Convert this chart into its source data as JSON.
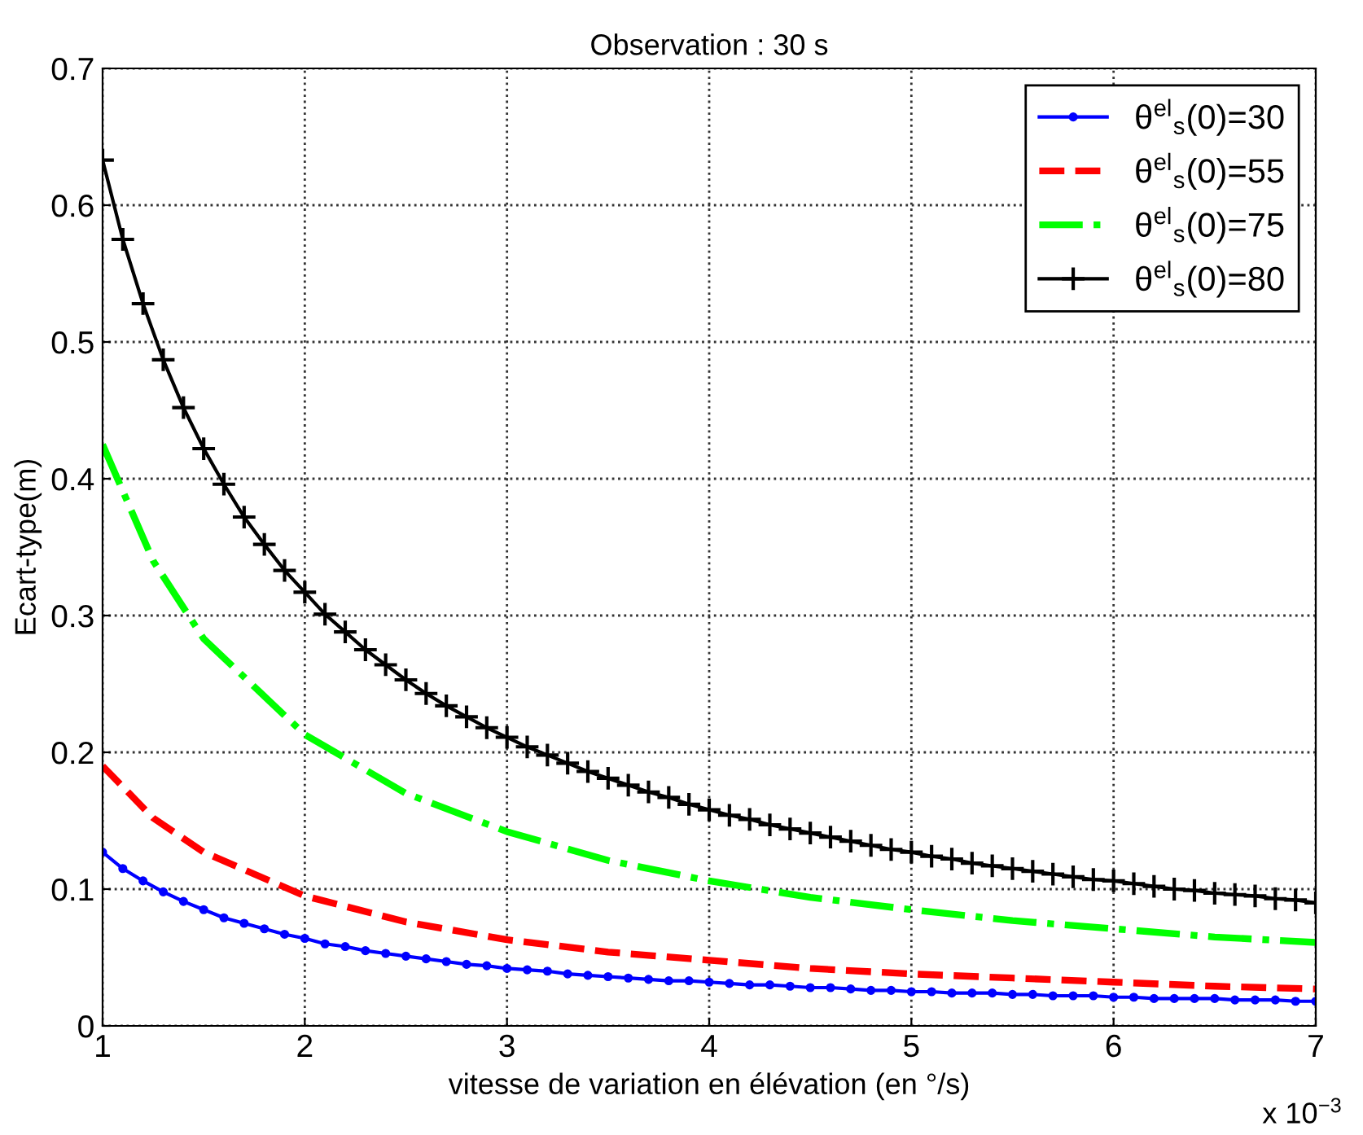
{
  "chart_data": {
    "type": "line",
    "title": "Observation : 30 s",
    "xlabel": "vitesse de variation en élévation (en °/s)",
    "ylabel": "Ecart-type(m)",
    "annotations": [
      "x 10$^{−3}$"
    ],
    "x": [
      1.0,
      1.1,
      1.2,
      1.3,
      1.4,
      1.5,
      1.6,
      1.7,
      1.8,
      1.9,
      2.0,
      2.1,
      2.2,
      2.3,
      2.4,
      2.5,
      2.6,
      2.7,
      2.8,
      2.9,
      3.0,
      3.1,
      3.2,
      3.3,
      3.4,
      3.5,
      3.6,
      3.7,
      3.8,
      3.9,
      4.0,
      4.1,
      4.2,
      4.3,
      4.4,
      4.5,
      4.6,
      4.7,
      4.8,
      4.9,
      5.0,
      5.1,
      5.2,
      5.3,
      5.4,
      5.5,
      5.6,
      5.7,
      5.8,
      5.9,
      6.0,
      6.1,
      6.2,
      6.3,
      6.4,
      6.5,
      6.6,
      6.7,
      6.8,
      6.9,
      7.0
    ],
    "series": [
      {
        "name": "θ$^{el}$$_{s}$(0)=30",
        "color": "#0000ff",
        "line_style": "solid",
        "marker": "circle",
        "values": [
          0.127,
          0.115,
          0.106,
          0.098,
          0.091,
          0.085,
          0.079,
          0.075,
          0.071,
          0.067,
          0.064,
          0.06,
          0.058,
          0.055,
          0.053,
          0.051,
          0.049,
          0.047,
          0.045,
          0.044,
          0.042,
          0.041,
          0.04,
          0.038,
          0.037,
          0.036,
          0.035,
          0.034,
          0.033,
          0.033,
          0.032,
          0.031,
          0.03,
          0.03,
          0.029,
          0.028,
          0.028,
          0.027,
          0.026,
          0.026,
          0.025,
          0.025,
          0.024,
          0.024,
          0.024,
          0.023,
          0.023,
          0.022,
          0.022,
          0.022,
          0.021,
          0.021,
          0.02,
          0.02,
          0.02,
          0.02,
          0.019,
          0.019,
          0.019,
          0.018,
          0.018
        ]
      },
      {
        "name": "θ$^{el}$$_{s}$(0)=55",
        "color": "#ff0000",
        "line_style": "dashed",
        "marker": "none",
        "x": [
          1,
          1.25,
          1.5,
          2,
          2.5,
          3,
          3.5,
          4,
          4.5,
          5,
          5.5,
          6,
          6.5,
          7
        ],
        "values": [
          0.19,
          0.152,
          0.127,
          0.095,
          0.076,
          0.063,
          0.054,
          0.048,
          0.042,
          0.038,
          0.035,
          0.032,
          0.029,
          0.027
        ]
      },
      {
        "name": "θ$^{el}$$_{s}$(0)=75",
        "color": "#00ff00",
        "line_style": "dashdot",
        "marker": "none",
        "x": [
          1,
          1.25,
          1.5,
          2,
          2.5,
          3,
          3.5,
          4,
          4.5,
          5,
          5.5,
          6,
          6.5,
          7
        ],
        "values": [
          0.425,
          0.34,
          0.283,
          0.213,
          0.17,
          0.142,
          0.121,
          0.106,
          0.094,
          0.085,
          0.077,
          0.071,
          0.065,
          0.061
        ]
      },
      {
        "name": "θ$^{el}$$_{s}$(0)=80",
        "color": "#000000",
        "line_style": "solid",
        "marker": "cross",
        "values": [
          0.633,
          0.575,
          0.528,
          0.487,
          0.452,
          0.422,
          0.396,
          0.372,
          0.352,
          0.333,
          0.317,
          0.301,
          0.288,
          0.275,
          0.264,
          0.253,
          0.243,
          0.234,
          0.226,
          0.218,
          0.211,
          0.204,
          0.198,
          0.192,
          0.186,
          0.181,
          0.176,
          0.171,
          0.167,
          0.162,
          0.158,
          0.154,
          0.151,
          0.147,
          0.144,
          0.141,
          0.138,
          0.135,
          0.132,
          0.129,
          0.127,
          0.124,
          0.122,
          0.119,
          0.117,
          0.115,
          0.113,
          0.111,
          0.109,
          0.107,
          0.106,
          0.104,
          0.102,
          0.1,
          0.099,
          0.097,
          0.096,
          0.095,
          0.093,
          0.092,
          0.09
        ]
      }
    ],
    "xlim": [
      1,
      7
    ],
    "xticks": [
      1,
      2,
      3,
      4,
      5,
      6,
      7
    ],
    "ylim": [
      0,
      0.7
    ],
    "yticks": [
      0,
      0.1,
      0.2,
      0.3,
      0.4,
      0.5,
      0.6,
      0.7
    ],
    "grid": true,
    "legend": "top right"
  }
}
